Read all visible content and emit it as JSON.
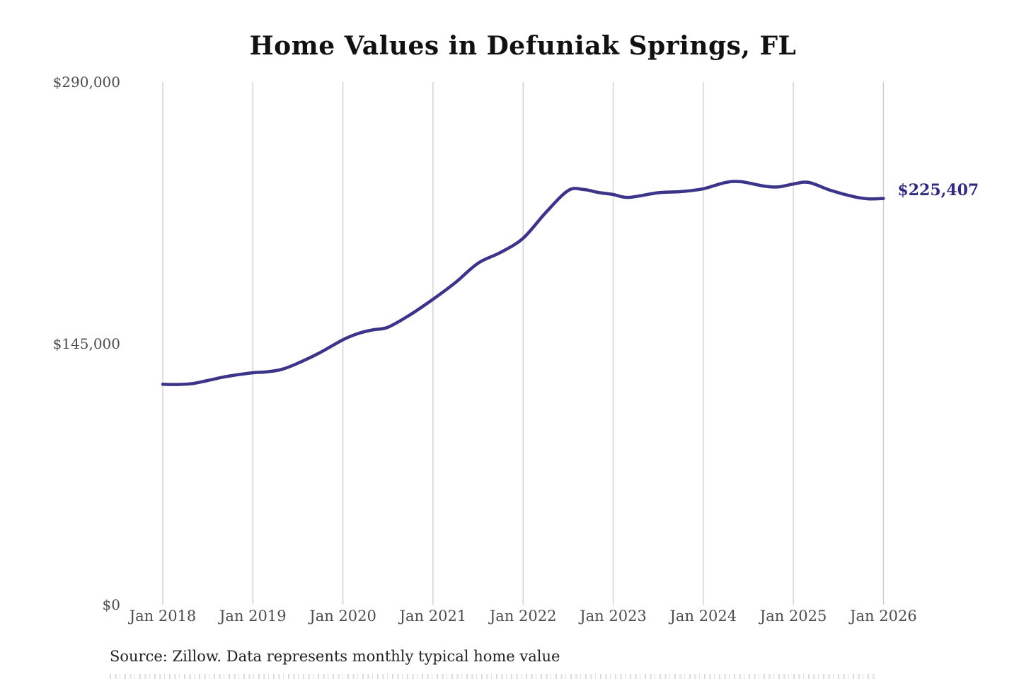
{
  "chart_data": {
    "type": "line",
    "title": "Home Values in Defuniak Springs, FL",
    "series_name": "Monthly typical home value",
    "x": [
      2018.0,
      2018.17,
      2018.33,
      2018.5,
      2018.67,
      2018.83,
      2019.0,
      2019.17,
      2019.33,
      2019.5,
      2019.75,
      2020.0,
      2020.17,
      2020.33,
      2020.5,
      2020.75,
      2021.0,
      2021.25,
      2021.5,
      2021.75,
      2022.0,
      2022.25,
      2022.5,
      2022.67,
      2022.83,
      2023.0,
      2023.17,
      2023.5,
      2023.75,
      2024.0,
      2024.25,
      2024.42,
      2024.67,
      2024.83,
      2025.0,
      2025.17,
      2025.42,
      2025.67,
      2025.83,
      2026.0
    ],
    "values": [
      122300,
      122200,
      122700,
      124400,
      126300,
      127600,
      128700,
      129300,
      130700,
      134000,
      140000,
      147000,
      150500,
      152500,
      154000,
      161000,
      169500,
      178800,
      189500,
      195500,
      203300,
      217500,
      229800,
      230400,
      228800,
      227600,
      226000,
      228600,
      229200,
      230800,
      234300,
      234700,
      232300,
      231800,
      233400,
      234300,
      229800,
      226400,
      225200,
      225407
    ],
    "xlim": [
      2018,
      2026
    ],
    "ylim": [
      0,
      290000
    ],
    "x_ticks": [
      {
        "value": 2018,
        "label": "Jan 2018"
      },
      {
        "value": 2019,
        "label": "Jan 2019"
      },
      {
        "value": 2020,
        "label": "Jan 2020"
      },
      {
        "value": 2021,
        "label": "Jan 2021"
      },
      {
        "value": 2022,
        "label": "Jan 2022"
      },
      {
        "value": 2023,
        "label": "Jan 2023"
      },
      {
        "value": 2024,
        "label": "Jan 2024"
      },
      {
        "value": 2025,
        "label": "Jan 2025"
      },
      {
        "value": 2026,
        "label": "Jan 2026"
      }
    ],
    "y_ticks": [
      {
        "value": 0,
        "label": "$0"
      },
      {
        "value": 145000,
        "label": "$145,000"
      },
      {
        "value": 290000,
        "label": "$290,000"
      }
    ],
    "grid": "vertical-only",
    "legend": "none",
    "end_label": "$225,407",
    "source": "Source: Zillow. Data represents monthly typical home value",
    "colors": {
      "line": "#3c3489",
      "end_label": "#312b80",
      "grid": "#cccccc",
      "axis_text": "#4d4d4d",
      "title": "#111111",
      "source_text": "#222222",
      "background": "#ffffff"
    }
  }
}
